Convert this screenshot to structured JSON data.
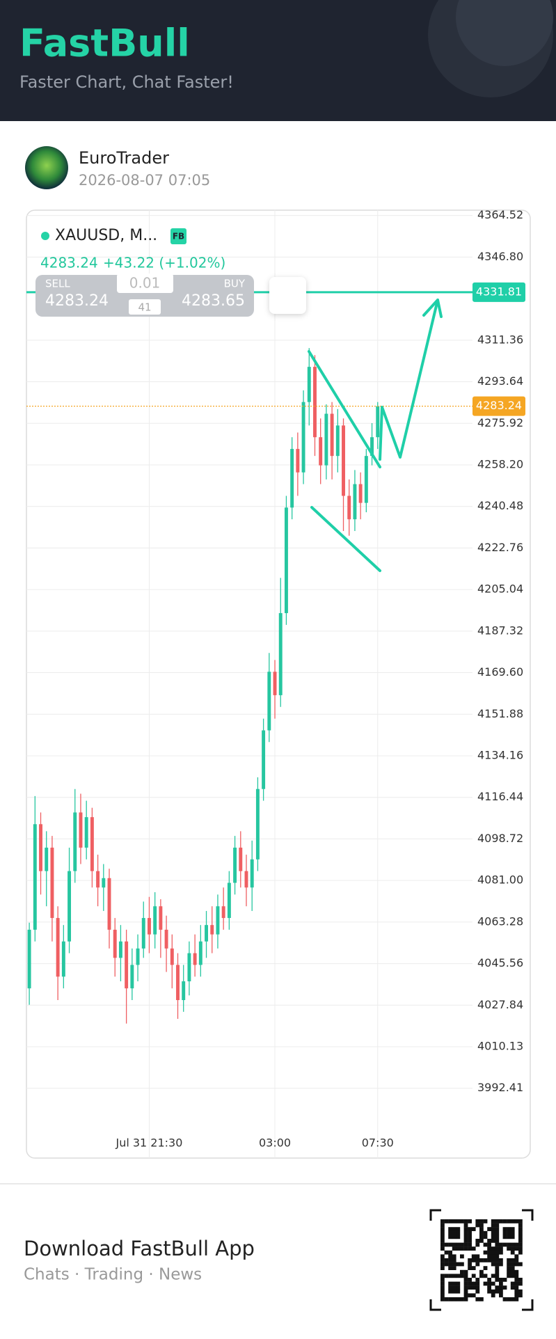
{
  "header": {
    "brand": "FastBull",
    "tagline": "Faster Chart, Chat Faster!"
  },
  "post": {
    "author": "EuroTrader",
    "time": "2026-08-07 07:05"
  },
  "quote": {
    "symbol": "XAUUSD, M...",
    "badge": "FB",
    "last": "4283.24",
    "change": "+43.22 (+1.02%)",
    "sell_label": "SELL",
    "sell": "4283.24",
    "lot": "0.01",
    "spread": "41",
    "buy_label": "BUY",
    "buy": "4283.65"
  },
  "chart_data": {
    "type": "candlestick",
    "open": [
      4035,
      4060,
      4105,
      4085,
      4095,
      4065,
      4040,
      4055,
      4085,
      4110,
      4095,
      4108,
      4085,
      4078,
      4082,
      4060,
      4048,
      4055,
      4035,
      4045,
      4052,
      4065,
      4058,
      4070,
      4060,
      4052,
      4045,
      4030,
      4038,
      4050,
      4045,
      4055,
      4062,
      4058,
      4070,
      4065,
      4080,
      4095,
      4085,
      4078,
      4090,
      4120,
      4145,
      4170,
      4160,
      4195,
      4240,
      4265,
      4255,
      4285,
      4300,
      4270,
      4258,
      4280,
      4262,
      4275,
      4245,
      4235,
      4250,
      4242,
      4262,
      4270
    ],
    "high": [
      4063,
      4117,
      4110,
      4102,
      4100,
      4070,
      4062,
      4095,
      4120,
      4118,
      4115,
      4112,
      4092,
      4088,
      4086,
      4065,
      4062,
      4060,
      4052,
      4058,
      4072,
      4074,
      4076,
      4073,
      4066,
      4058,
      4050,
      4045,
      4055,
      4058,
      4062,
      4068,
      4070,
      4075,
      4078,
      4085,
      4100,
      4102,
      4092,
      4098,
      4125,
      4150,
      4178,
      4175,
      4210,
      4245,
      4270,
      4272,
      4290,
      4308,
      4305,
      4278,
      4284,
      4285,
      4282,
      4278,
      4252,
      4256,
      4255,
      4265,
      4276,
      4285
    ],
    "low": [
      4028,
      4055,
      4075,
      4070,
      4055,
      4030,
      4035,
      4050,
      4080,
      4088,
      4090,
      4078,
      4070,
      4068,
      4052,
      4040,
      4038,
      4020,
      4030,
      4038,
      4048,
      4050,
      4052,
      4048,
      4042,
      4035,
      4022,
      4025,
      4032,
      4040,
      4040,
      4048,
      4050,
      4052,
      4060,
      4060,
      4075,
      4078,
      4070,
      4068,
      4085,
      4115,
      4140,
      4150,
      4155,
      4190,
      4235,
      4245,
      4250,
      4275,
      4262,
      4250,
      4252,
      4252,
      4255,
      4230,
      4228,
      4230,
      4235,
      4238,
      4258,
      4265
    ],
    "close": [
      4060,
      4105,
      4085,
      4095,
      4065,
      4040,
      4055,
      4085,
      4110,
      4095,
      4108,
      4085,
      4078,
      4082,
      4060,
      4048,
      4055,
      4035,
      4045,
      4052,
      4065,
      4058,
      4070,
      4060,
      4052,
      4045,
      4030,
      4038,
      4050,
      4045,
      4055,
      4062,
      4058,
      4070,
      4065,
      4080,
      4095,
      4085,
      4078,
      4090,
      4120,
      4145,
      4170,
      4160,
      4195,
      4240,
      4265,
      4255,
      4285,
      4300,
      4270,
      4258,
      4280,
      4262,
      4275,
      4245,
      4235,
      4250,
      4242,
      4262,
      4270,
      4283.24
    ],
    "up_color": "#26c6a0",
    "down_color": "#ef5f62",
    "xlim": [
      -0.5,
      77.6
    ],
    "xticks": [
      {
        "value": 21,
        "label": "Jul 31 21:30"
      },
      {
        "value": 43,
        "label": "03:00"
      },
      {
        "value": 61,
        "label": "07:30"
      }
    ],
    "ylim": [
      3975.7,
      4366.8
    ],
    "yticks": [
      4364.52,
      {
        "value": 4346.8,
        "label": "4346.80"
      },
      4311.36,
      4293.64,
      4275.92,
      {
        "value": 4258.2,
        "label": "4258.20"
      },
      4240.48,
      4222.76,
      4205.04,
      4187.32,
      {
        "value": 4169.6,
        "label": "4169.60"
      },
      4151.88,
      4134.16,
      4116.44,
      4098.72,
      {
        "value": 4081,
        "label": "4081.00"
      },
      4063.28,
      4045.56,
      4027.84,
      4010.13,
      3992.41
    ],
    "grid": true,
    "hline": 4331.81,
    "hline_color": "#1fcfa8",
    "last_price": 4283.24,
    "last_price_color": "#f5a623"
  },
  "footer": {
    "title": "Download FastBull App",
    "subtitle": "Chats · Trading · News"
  }
}
